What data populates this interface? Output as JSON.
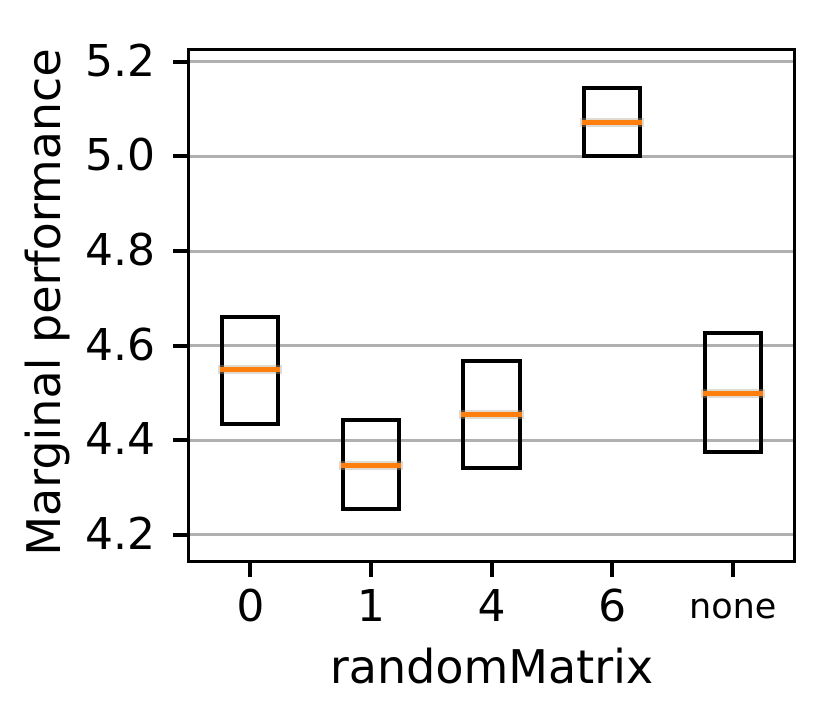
{
  "figure": {
    "background": "#ffffff"
  },
  "chart_data": {
    "type": "box",
    "title": "",
    "xlabel": "randomMatrix",
    "ylabel": "Marginal performance",
    "categories": [
      "0",
      "1",
      "4",
      "6",
      "none"
    ],
    "ytick_labels": [
      "4.2",
      "4.4",
      "4.6",
      "4.8",
      "5.0",
      "5.2"
    ],
    "ylim": [
      4.147,
      5.223
    ],
    "grid": true,
    "legend_position": "none",
    "box_width_frac": 0.5,
    "boxes": [
      {
        "category": "0",
        "q1": 4.43,
        "median": 4.55,
        "q3": 4.665
      },
      {
        "category": "1",
        "q1": 4.25,
        "median": 4.347,
        "q3": 4.447
      },
      {
        "category": "4",
        "q1": 4.338,
        "median": 4.455,
        "q3": 4.572
      },
      {
        "category": "6",
        "q1": 4.997,
        "median": 5.072,
        "q3": 5.149
      },
      {
        "category": "none",
        "q1": 4.371,
        "median": 4.499,
        "q3": 4.631
      }
    ],
    "colors": {
      "box_edge": "#000000",
      "median": "#ff7f0e",
      "grid": "#b0b0b0",
      "axis": "#000000",
      "text": "#000000",
      "background": "#ffffff"
    }
  }
}
